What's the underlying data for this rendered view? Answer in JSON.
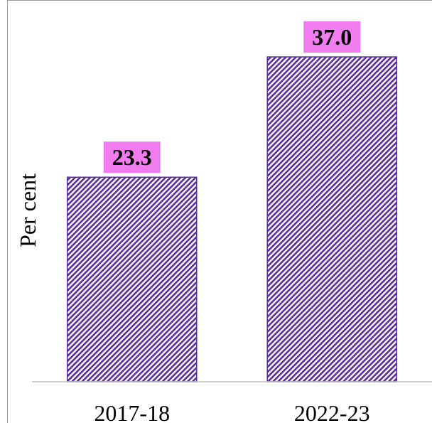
{
  "chart_data": {
    "type": "bar",
    "categories": [
      "2017-18",
      "2022-23"
    ],
    "values": [
      23.3,
      37.0
    ],
    "data_labels": [
      "23.3",
      "37.0"
    ],
    "title": "",
    "xlabel": "",
    "ylabel": "Per cent",
    "ylim": [
      0,
      40
    ],
    "grid": false,
    "legend": "none",
    "colors": {
      "bar_stripe": "#5b2c9f",
      "bar_background": "#ffffff",
      "label_background": "#f07cf0",
      "axis": "#bfbfbf"
    }
  }
}
